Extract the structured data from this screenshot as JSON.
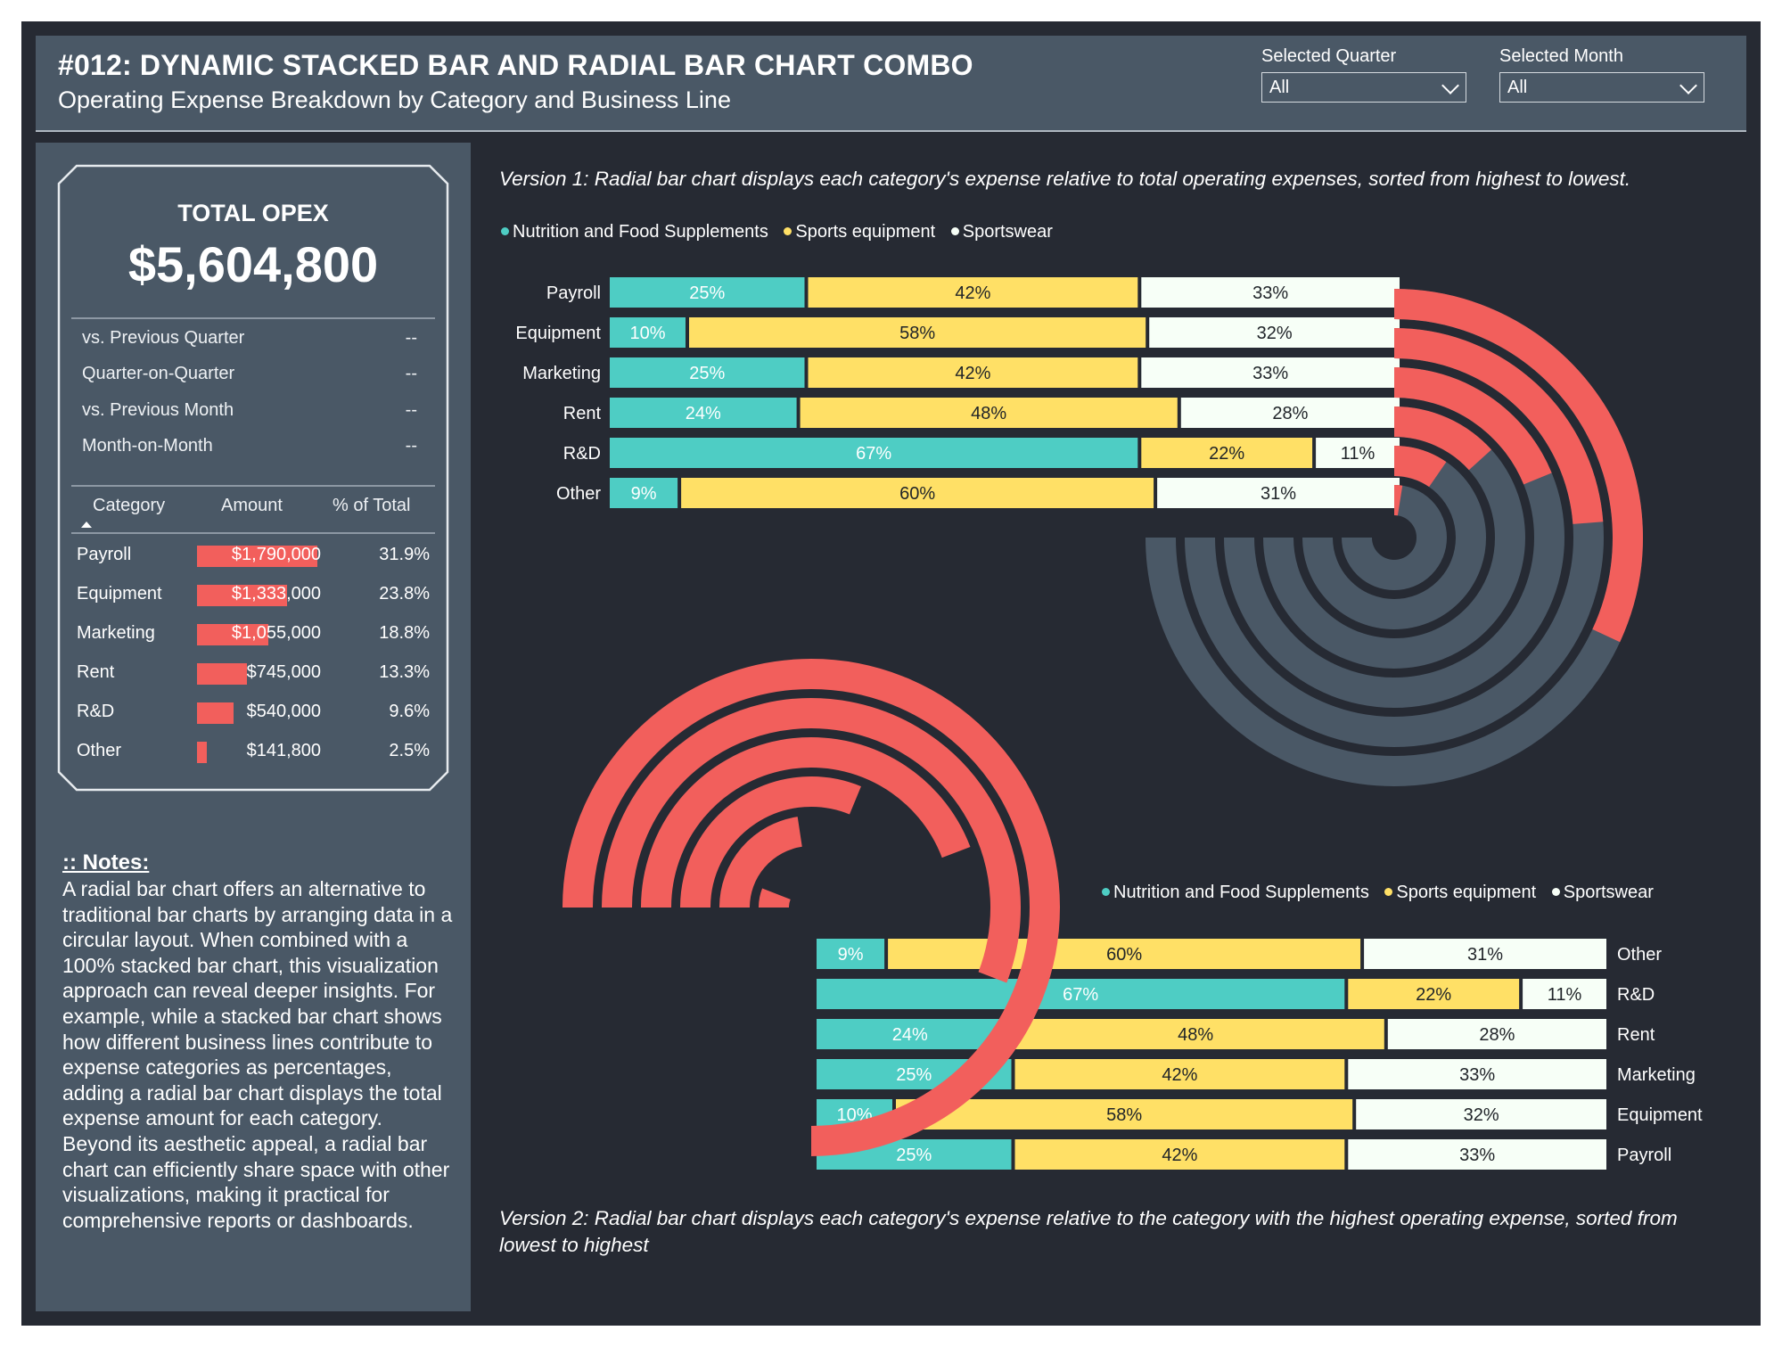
{
  "header": {
    "title": "#012: DYNAMIC STACKED BAR AND RADIAL BAR CHART COMBO",
    "subtitle": "Operating Expense Breakdown by Category and Business Line",
    "slicers": [
      {
        "label": "Selected Quarter",
        "value": "All"
      },
      {
        "label": "Selected Month",
        "value": "All"
      }
    ]
  },
  "kpi": {
    "title": "TOTAL OPEX",
    "value": "$5,604,800",
    "comparisons": [
      {
        "label": "vs. Previous Quarter",
        "value": "--"
      },
      {
        "label": "Quarter-on-Quarter",
        "value": "--"
      },
      {
        "label": "vs. Previous Month",
        "value": "--"
      },
      {
        "label": "Month-on-Month",
        "value": "--"
      }
    ]
  },
  "table": {
    "headers": {
      "category": "Category",
      "amount": "Amount",
      "pct": "% of Total"
    },
    "rows": [
      {
        "category": "Payroll",
        "amount": "$1,790,000",
        "pct": "31.9%",
        "value": 1790000
      },
      {
        "category": "Equipment",
        "amount": "$1,333,000",
        "pct": "23.8%",
        "value": 1333000
      },
      {
        "category": "Marketing",
        "amount": "$1,055,000",
        "pct": "18.8%",
        "value": 1055000
      },
      {
        "category": "Rent",
        "amount": "$745,000",
        "pct": "13.3%",
        "value": 745000
      },
      {
        "category": "R&D",
        "amount": "$540,000",
        "pct": "9.6%",
        "value": 540000
      },
      {
        "category": "Other",
        "amount": "$141,800",
        "pct": "2.5%",
        "value": 141800
      }
    ]
  },
  "notes": {
    "title": ":: Notes:",
    "body": "A radial bar chart offers an alternative to traditional bar charts by arranging data in a circular layout. When combined with a 100% stacked bar chart, this visualization approach can reveal deeper insights. For example, while a stacked bar chart shows how different business lines contribute to expense categories as percentages, adding a radial bar chart displays the total expense amount for each category. Beyond its aesthetic appeal, a radial bar chart can efficiently share space with other visualizations, making it practical for comprehensive reports or dashboards."
  },
  "captions": {
    "version1": "Version 1: Radial bar chart displays each category's expense relative to total operating expenses, sorted from highest to lowest.",
    "version2": "Version 2: Radial bar chart displays each category's expense relative to the category with the highest operating expense, sorted from lowest to highest"
  },
  "colors": {
    "nutrition": "#4ecdc4",
    "sports_equipment": "#ffe066",
    "sportswear": "#f7fff7",
    "radial": "#f25f5c",
    "radial_track": "#4a5866",
    "background": "#262a33",
    "panel": "#4a5866"
  },
  "chart_data": [
    {
      "type": "bar",
      "stacked": "100%",
      "orientation": "horizontal",
      "categories": [
        "Payroll",
        "Equipment",
        "Marketing",
        "Rent",
        "R&D",
        "Other"
      ],
      "series": [
        {
          "name": "Nutrition and Food Supplements",
          "values": [
            25,
            10,
            25,
            24,
            67,
            9
          ]
        },
        {
          "name": "Sports equipment",
          "values": [
            42,
            58,
            42,
            48,
            22,
            60
          ]
        },
        {
          "name": "Sportswear",
          "values": [
            33,
            32,
            33,
            28,
            11,
            31
          ]
        }
      ],
      "legend": "top-left"
    },
    {
      "type": "radial_bar",
      "categories": [
        "Payroll",
        "Equipment",
        "Marketing",
        "Rent",
        "R&D",
        "Other"
      ],
      "values": [
        1790000,
        1333000,
        1055000,
        745000,
        540000,
        141800
      ],
      "share_of_total": [
        31.9,
        23.8,
        18.8,
        13.3,
        9.6,
        2.5
      ],
      "scale": "share of total operating expenses",
      "sort": "highest to lowest"
    },
    {
      "type": "bar",
      "stacked": "100%",
      "orientation": "horizontal",
      "categories": [
        "Other",
        "R&D",
        "Rent",
        "Marketing",
        "Equipment",
        "Payroll"
      ],
      "series": [
        {
          "name": "Nutrition and Food Supplements",
          "values": [
            9,
            67,
            24,
            25,
            10,
            25
          ]
        },
        {
          "name": "Sports equipment",
          "values": [
            60,
            22,
            48,
            42,
            58,
            42
          ]
        },
        {
          "name": "Sportswear",
          "values": [
            31,
            11,
            28,
            33,
            32,
            33
          ]
        }
      ],
      "legend": "top-right"
    },
    {
      "type": "radial_bar",
      "categories": [
        "Other",
        "R&D",
        "Rent",
        "Marketing",
        "Equipment",
        "Payroll"
      ],
      "values": [
        141800,
        540000,
        745000,
        1055000,
        1333000,
        1790000
      ],
      "scale": "relative to the highest category",
      "sort": "lowest to highest"
    }
  ]
}
